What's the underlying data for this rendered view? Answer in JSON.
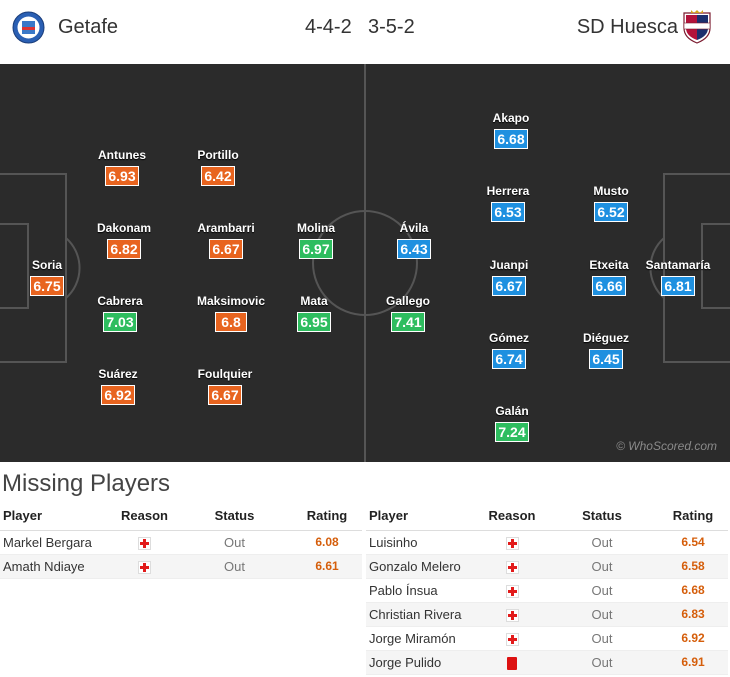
{
  "header": {
    "home_team": "Getafe",
    "home_formation": "4-4-2",
    "away_formation": "3-5-2",
    "away_team": "SD Huesca"
  },
  "pitch": {
    "watermark": "© WhoScored.com",
    "home_players": [
      {
        "name": "Soria",
        "rating": "6.75",
        "color": "orange"
      },
      {
        "name": "Antunes",
        "rating": "6.93",
        "color": "orange"
      },
      {
        "name": "Dakonam",
        "rating": "6.82",
        "color": "orange"
      },
      {
        "name": "Cabrera",
        "rating": "7.03",
        "color": "green"
      },
      {
        "name": "Suárez",
        "rating": "6.92",
        "color": "orange"
      },
      {
        "name": "Portillo",
        "rating": "6.42",
        "color": "orange"
      },
      {
        "name": "Arambarri",
        "rating": "6.67",
        "color": "orange"
      },
      {
        "name": "Maksimovic",
        "rating": "6.8",
        "color": "orange"
      },
      {
        "name": "Foulquier",
        "rating": "6.67",
        "color": "orange"
      },
      {
        "name": "Molina",
        "rating": "6.97",
        "color": "green"
      },
      {
        "name": "Mata",
        "rating": "6.95",
        "color": "green"
      }
    ],
    "away_players": [
      {
        "name": "Ávila",
        "rating": "6.43",
        "color": "blue"
      },
      {
        "name": "Gallego",
        "rating": "7.41",
        "color": "green"
      },
      {
        "name": "Akapo",
        "rating": "6.68",
        "color": "blue"
      },
      {
        "name": "Herrera",
        "rating": "6.53",
        "color": "blue"
      },
      {
        "name": "Juanpi",
        "rating": "6.67",
        "color": "blue"
      },
      {
        "name": "Gómez",
        "rating": "6.74",
        "color": "blue"
      },
      {
        "name": "Galán",
        "rating": "7.24",
        "color": "green"
      },
      {
        "name": "Musto",
        "rating": "6.52",
        "color": "blue"
      },
      {
        "name": "Etxeita",
        "rating": "6.66",
        "color": "blue"
      },
      {
        "name": "Diéguez",
        "rating": "6.45",
        "color": "blue"
      },
      {
        "name": "Santamaría",
        "rating": "6.81",
        "color": "blue"
      }
    ]
  },
  "missing": {
    "title": "Missing Players",
    "columns": [
      "Player",
      "Reason",
      "Status",
      "Rating"
    ],
    "home": [
      {
        "player": "Markel Bergara",
        "reason": "injury",
        "status": "Out",
        "rating": "6.08"
      },
      {
        "player": "Amath Ndiaye",
        "reason": "injury",
        "status": "Out",
        "rating": "6.61"
      }
    ],
    "away": [
      {
        "player": "Luisinho",
        "reason": "injury",
        "status": "Out",
        "rating": "6.54"
      },
      {
        "player": "Gonzalo Melero",
        "reason": "injury",
        "status": "Out",
        "rating": "6.58"
      },
      {
        "player": "Pablo Ínsua",
        "reason": "injury",
        "status": "Out",
        "rating": "6.68"
      },
      {
        "player": "Christian Rivera",
        "reason": "injury",
        "status": "Out",
        "rating": "6.83"
      },
      {
        "player": "Jorge Miramón",
        "reason": "injury",
        "status": "Out",
        "rating": "6.92"
      },
      {
        "player": "Jorge Pulido",
        "reason": "red-card",
        "status": "Out",
        "rating": "6.91"
      }
    ]
  }
}
